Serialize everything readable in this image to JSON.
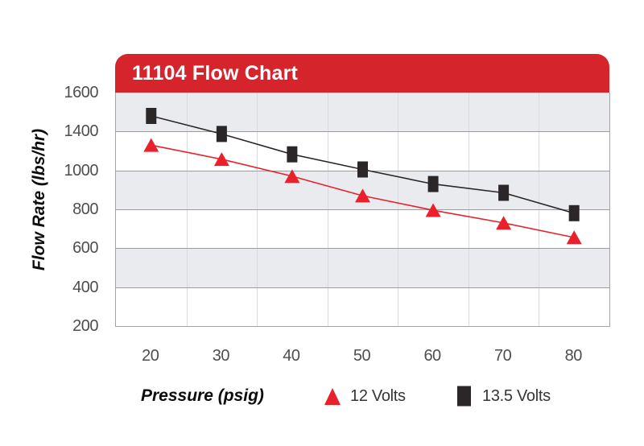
{
  "header": {
    "title": "11104 Flow Chart",
    "banner_color": "#d6242c"
  },
  "axes": {
    "y_title": "Flow Rate (lbs/hr)",
    "x_title": "Pressure (psig)",
    "y_tick_labels": [
      "1600",
      "1400",
      "1000",
      "800",
      "600",
      "400",
      "200"
    ],
    "x_tick_labels": [
      "20",
      "30",
      "40",
      "50",
      "60",
      "70",
      "80"
    ]
  },
  "legend": [
    {
      "label": "12 Volts",
      "marker": "triangle-icon",
      "color": "#e8212b"
    },
    {
      "label": "13.5 Volts",
      "marker": "square-icon",
      "color": "#2b2728"
    }
  ],
  "chart_data": {
    "type": "line",
    "title": "11104 Flow Chart",
    "xlabel": "Pressure (psig)",
    "ylabel": "Flow Rate (lbs/hr)",
    "categories": [
      20,
      30,
      40,
      50,
      60,
      70,
      80
    ],
    "series": [
      {
        "name": "12 Volts",
        "marker": "triangle",
        "color": "#e8212b",
        "values": [
          1260,
          1115,
          970,
          870,
          795,
          730,
          655
        ]
      },
      {
        "name": "13.5 Volts",
        "marker": "square",
        "color": "#2b2728",
        "values": [
          1480,
          1375,
          1165,
          1010,
          930,
          885,
          780
        ]
      }
    ],
    "y_tick_labels_as_printed": [
      "1600",
      "1400",
      "1000",
      "800",
      "600",
      "400",
      "200"
    ],
    "axis_note": "y axis labels as printed skip 1200; points plotted on that label scale",
    "grid": true,
    "band_colors": [
      "#e9ebee",
      "#ffffff"
    ],
    "h_grid_color": "#9b9da0",
    "v_grid_color": "#d8dadd",
    "legend_position": "bottom"
  }
}
